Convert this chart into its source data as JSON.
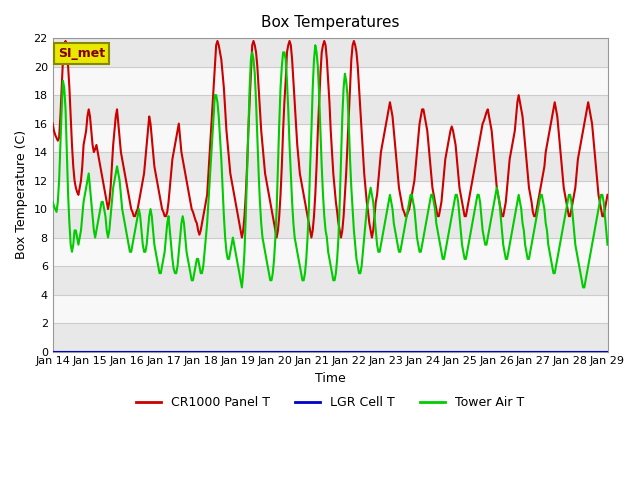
{
  "title": "Box Temperatures",
  "ylabel": "Box Temperature (C)",
  "xlabel": "Time",
  "ylim": [
    0,
    22
  ],
  "xlim": [
    0,
    360
  ],
  "annotation": "SI_met",
  "bg_color": "#ffffff",
  "plot_bg_light": "#e8e8e8",
  "plot_bg_dark": "#f8f8f8",
  "grid_color": "#cccccc",
  "series": [
    {
      "label": "CR1000 Panel T",
      "color": "#cc0000",
      "lw": 1.5
    },
    {
      "label": "LGR Cell T",
      "color": "#0000cc",
      "lw": 1.5
    },
    {
      "label": "Tower Air T",
      "color": "#00cc00",
      "lw": 1.5
    }
  ],
  "xtick_labels": [
    "Jan 14",
    "Jan 15",
    "Jan 16",
    "Jan 17",
    "Jan 18",
    "Jan 19",
    "Jan 20",
    "Jan 21",
    "Jan 22",
    "Jan 23",
    "Jan 24",
    "Jan 25",
    "Jan 26",
    "Jan 27",
    "Jan 28",
    "Jan 29"
  ],
  "xtick_positions": [
    0,
    24,
    48,
    72,
    96,
    120,
    144,
    168,
    192,
    216,
    240,
    264,
    288,
    312,
    336,
    360
  ],
  "ytick_positions": [
    0,
    2,
    4,
    6,
    8,
    10,
    12,
    14,
    16,
    18,
    20,
    22
  ],
  "panel_t": [
    16.0,
    15.5,
    15.2,
    15.0,
    14.8,
    15.0,
    16.5,
    18.5,
    20.5,
    21.5,
    21.8,
    21.0,
    20.0,
    18.5,
    16.5,
    14.5,
    13.0,
    12.0,
    11.5,
    11.2,
    11.0,
    11.5,
    12.0,
    13.0,
    14.5,
    15.0,
    15.5,
    16.5,
    17.0,
    16.5,
    15.5,
    14.5,
    14.0,
    14.2,
    14.5,
    14.0,
    13.5,
    13.0,
    12.5,
    12.0,
    11.5,
    11.0,
    10.5,
    10.0,
    10.5,
    11.5,
    13.0,
    14.5,
    15.5,
    16.5,
    17.0,
    16.0,
    15.0,
    14.0,
    13.5,
    13.0,
    12.5,
    12.0,
    11.5,
    11.0,
    10.5,
    10.0,
    9.8,
    9.5,
    9.5,
    9.8,
    10.0,
    10.5,
    11.0,
    11.5,
    12.0,
    12.5,
    13.5,
    14.5,
    15.5,
    16.5,
    16.0,
    15.0,
    14.0,
    13.0,
    12.5,
    12.0,
    11.5,
    11.0,
    10.5,
    10.0,
    9.8,
    9.5,
    9.5,
    9.8,
    10.5,
    11.5,
    12.5,
    13.5,
    14.0,
    14.5,
    15.0,
    15.5,
    16.0,
    15.0,
    14.0,
    13.5,
    13.0,
    12.5,
    12.0,
    11.5,
    11.0,
    10.5,
    10.0,
    9.8,
    9.5,
    9.2,
    9.0,
    8.5,
    8.2,
    8.5,
    9.0,
    9.5,
    10.0,
    10.5,
    11.0,
    12.5,
    14.0,
    15.5,
    17.0,
    18.5,
    20.0,
    21.5,
    21.8,
    21.5,
    21.0,
    20.5,
    19.5,
    18.5,
    17.0,
    15.5,
    14.5,
    13.5,
    12.5,
    12.0,
    11.5,
    11.0,
    10.5,
    10.0,
    9.5,
    9.0,
    8.5,
    8.0,
    8.5,
    9.5,
    11.0,
    13.0,
    15.5,
    17.5,
    19.5,
    21.5,
    21.8,
    21.5,
    21.0,
    20.0,
    18.5,
    17.0,
    15.5,
    14.5,
    13.5,
    12.5,
    12.0,
    11.5,
    11.0,
    10.5,
    10.0,
    9.5,
    9.0,
    8.5,
    8.0,
    8.5,
    9.5,
    11.0,
    13.0,
    15.5,
    17.5,
    19.0,
    21.0,
    21.5,
    21.8,
    21.5,
    20.5,
    19.0,
    17.5,
    16.0,
    14.5,
    13.5,
    12.5,
    12.0,
    11.5,
    11.0,
    10.5,
    10.0,
    9.5,
    9.0,
    8.5,
    8.0,
    8.5,
    9.5,
    11.0,
    13.0,
    15.5,
    17.5,
    19.5,
    21.0,
    21.5,
    21.8,
    21.5,
    20.5,
    19.0,
    17.5,
    15.5,
    14.0,
    12.5,
    11.5,
    10.5,
    9.8,
    9.0,
    8.5,
    8.0,
    8.5,
    9.5,
    11.0,
    12.5,
    14.5,
    16.5,
    18.5,
    20.5,
    21.5,
    21.8,
    21.5,
    21.0,
    20.0,
    18.5,
    17.0,
    15.5,
    14.0,
    12.5,
    11.5,
    10.5,
    9.8,
    9.0,
    8.5,
    8.0,
    8.5,
    9.5,
    10.5,
    11.0,
    12.0,
    13.0,
    14.0,
    14.5,
    15.0,
    15.5,
    16.0,
    16.5,
    17.0,
    17.5,
    17.0,
    16.5,
    15.5,
    14.5,
    13.5,
    12.5,
    11.5,
    11.0,
    10.5,
    10.0,
    9.8,
    9.5,
    9.5,
    9.8,
    10.0,
    10.5,
    11.0,
    11.5,
    12.0,
    13.0,
    14.0,
    15.0,
    16.0,
    16.5,
    17.0,
    17.0,
    16.5,
    16.0,
    15.5,
    14.5,
    13.5,
    12.5,
    11.5,
    11.0,
    10.5,
    10.0,
    9.5,
    9.5,
    10.0,
    10.5,
    11.5,
    12.5,
    13.5,
    14.0,
    14.5,
    15.0,
    15.5,
    15.8,
    15.5,
    15.0,
    14.5,
    13.5,
    12.5,
    11.5,
    11.0,
    10.5,
    10.0,
    9.5,
    9.5,
    10.0,
    10.5,
    11.0,
    11.5,
    12.0,
    12.5,
    13.0,
    13.5,
    14.0,
    14.5,
    15.0,
    15.5,
    16.0,
    16.2,
    16.5,
    16.8,
    17.0,
    16.5,
    16.0,
    15.5,
    14.5,
    13.5,
    12.5,
    11.5,
    11.0,
    10.5,
    10.0,
    9.5,
    9.5,
    10.0,
    10.5,
    11.5,
    12.5,
    13.5,
    14.0,
    14.5,
    15.0,
    15.5,
    16.5,
    17.5,
    18.0,
    17.5,
    17.0,
    16.5,
    15.5,
    14.5,
    13.5,
    12.5,
    11.5,
    11.0,
    10.5,
    9.8,
    9.5,
    9.5,
    10.0,
    10.5,
    11.0,
    11.5,
    12.0,
    12.5,
    13.0,
    14.0,
    14.5,
    15.0,
    15.5,
    16.0,
    16.5,
    17.0,
    17.5,
    17.0,
    16.5,
    15.5,
    14.5,
    13.5,
    12.5,
    11.5,
    11.0,
    10.5,
    10.0,
    9.5,
    9.5,
    10.0,
    10.5,
    11.0,
    11.5,
    12.5,
    13.5,
    14.0,
    14.5,
    15.0,
    15.5,
    16.0,
    16.5,
    17.0,
    17.5,
    17.0,
    16.5,
    16.0,
    15.0,
    14.0,
    13.0,
    12.0,
    11.0,
    10.5,
    10.0,
    9.5,
    9.5,
    10.0,
    10.5,
    11.0
  ],
  "lgr_t": 0.0,
  "tower_t": [
    10.5,
    10.2,
    10.0,
    9.8,
    10.5,
    12.0,
    14.5,
    17.0,
    19.0,
    18.5,
    17.0,
    14.0,
    11.0,
    9.0,
    7.5,
    7.0,
    7.5,
    8.5,
    8.5,
    8.0,
    7.5,
    8.0,
    8.5,
    9.5,
    10.5,
    11.0,
    11.5,
    12.0,
    12.5,
    11.5,
    10.5,
    9.5,
    8.5,
    8.0,
    8.5,
    9.0,
    9.5,
    10.0,
    10.5,
    10.5,
    10.0,
    9.5,
    8.5,
    8.0,
    8.5,
    9.5,
    10.5,
    11.5,
    12.0,
    12.5,
    13.0,
    12.5,
    12.0,
    11.0,
    10.0,
    9.5,
    9.0,
    8.5,
    8.0,
    7.5,
    7.0,
    7.0,
    7.5,
    8.0,
    8.5,
    9.0,
    9.5,
    10.0,
    9.5,
    8.5,
    7.5,
    7.0,
    7.0,
    7.5,
    8.5,
    9.5,
    10.0,
    9.5,
    8.5,
    7.5,
    7.0,
    6.5,
    6.0,
    5.5,
    5.5,
    6.0,
    6.5,
    7.0,
    8.0,
    9.0,
    9.5,
    8.5,
    7.5,
    6.5,
    5.8,
    5.5,
    5.5,
    6.0,
    7.0,
    8.0,
    9.0,
    9.5,
    9.0,
    8.0,
    7.0,
    6.5,
    6.0,
    5.5,
    5.0,
    5.0,
    5.5,
    6.0,
    6.5,
    6.5,
    6.0,
    5.5,
    5.5,
    6.0,
    7.0,
    8.0,
    9.0,
    10.5,
    12.0,
    13.5,
    15.0,
    16.5,
    18.0,
    18.0,
    17.5,
    16.5,
    15.0,
    13.5,
    11.5,
    9.5,
    8.0,
    7.0,
    6.5,
    6.5,
    7.0,
    7.5,
    8.0,
    7.5,
    7.0,
    6.5,
    6.0,
    5.5,
    5.0,
    4.5,
    5.5,
    7.0,
    9.5,
    12.5,
    15.5,
    18.5,
    20.5,
    21.0,
    20.5,
    19.5,
    17.5,
    15.0,
    12.5,
    10.5,
    9.0,
    8.0,
    7.5,
    7.0,
    6.5,
    6.0,
    5.5,
    5.0,
    5.0,
    5.5,
    6.5,
    8.0,
    10.0,
    13.0,
    16.0,
    18.5,
    20.0,
    21.0,
    21.0,
    20.5,
    19.0,
    17.0,
    14.5,
    12.5,
    10.5,
    9.0,
    8.0,
    7.5,
    7.0,
    6.5,
    6.0,
    5.5,
    5.0,
    5.0,
    5.5,
    6.5,
    8.0,
    10.0,
    13.0,
    15.5,
    18.5,
    20.5,
    21.5,
    21.0,
    20.0,
    18.0,
    15.5,
    13.0,
    11.0,
    9.5,
    8.5,
    8.0,
    7.0,
    6.5,
    6.0,
    5.5,
    5.0,
    5.0,
    5.5,
    6.5,
    8.0,
    10.5,
    13.5,
    16.5,
    18.5,
    19.5,
    19.0,
    18.0,
    16.0,
    13.5,
    11.5,
    10.0,
    8.5,
    7.5,
    6.5,
    6.0,
    5.5,
    5.5,
    6.0,
    7.0,
    8.0,
    9.0,
    10.0,
    10.5,
    11.0,
    11.5,
    11.0,
    10.5,
    9.5,
    8.5,
    7.5,
    7.0,
    7.0,
    7.5,
    8.0,
    8.5,
    9.0,
    9.5,
    10.0,
    10.5,
    11.0,
    10.5,
    10.0,
    9.0,
    8.5,
    8.0,
    7.5,
    7.0,
    7.0,
    7.5,
    8.0,
    8.5,
    9.0,
    9.5,
    10.0,
    10.5,
    11.0,
    11.0,
    10.5,
    10.0,
    9.0,
    8.0,
    7.5,
    7.0,
    7.0,
    7.5,
    8.0,
    8.5,
    9.0,
    9.5,
    10.0,
    10.5,
    11.0,
    11.0,
    10.5,
    10.0,
    9.0,
    8.5,
    8.0,
    7.5,
    7.0,
    6.5,
    6.5,
    7.0,
    7.5,
    8.0,
    8.5,
    9.0,
    9.5,
    10.0,
    10.5,
    11.0,
    11.0,
    10.5,
    9.5,
    8.5,
    7.5,
    7.0,
    6.5,
    6.5,
    7.0,
    7.5,
    8.0,
    8.5,
    9.0,
    9.5,
    10.0,
    10.5,
    11.0,
    11.0,
    10.5,
    9.5,
    8.5,
    8.0,
    7.5,
    7.5,
    8.0,
    8.5,
    9.0,
    9.5,
    10.0,
    10.5,
    11.0,
    11.5,
    11.0,
    10.5,
    9.5,
    8.5,
    7.5,
    7.0,
    6.5,
    6.5,
    7.0,
    7.5,
    8.0,
    8.5,
    9.0,
    9.5,
    10.0,
    10.5,
    11.0,
    10.5,
    10.0,
    9.0,
    8.5,
    7.5,
    7.0,
    6.5,
    6.5,
    7.0,
    7.5,
    8.0,
    8.5,
    9.0,
    9.5,
    10.0,
    10.5,
    11.0,
    11.0,
    10.5,
    10.0,
    9.0,
    8.5,
    7.5,
    7.0,
    6.5,
    6.0,
    5.5,
    5.5,
    6.0,
    6.5,
    7.0,
    7.5,
    8.0,
    8.5,
    9.0,
    9.5,
    10.0,
    10.5,
    11.0,
    11.0,
    10.5,
    9.5,
    8.5,
    7.5,
    7.0,
    6.5,
    6.0,
    5.5,
    5.0,
    4.5,
    4.5,
    5.0,
    5.5,
    6.0,
    6.5,
    7.0,
    7.5,
    8.0,
    8.5,
    9.0,
    9.5,
    10.0,
    10.5,
    11.0,
    11.0,
    10.5,
    9.5,
    8.5,
    7.5,
    7.0,
    6.5,
    6.0,
    5.5,
    5.0,
    4.5,
    4.5,
    5.0,
    5.5,
    6.0,
    6.5,
    7.0,
    7.5,
    8.0,
    8.5,
    9.0,
    9.5,
    10.0,
    10.5,
    11.0,
    11.0,
    10.5,
    9.5,
    8.5,
    7.5,
    7.0,
    6.5,
    6.0,
    5.5,
    5.0,
    4.5,
    4.5,
    5.0,
    5.5,
    6.0,
    6.5
  ]
}
